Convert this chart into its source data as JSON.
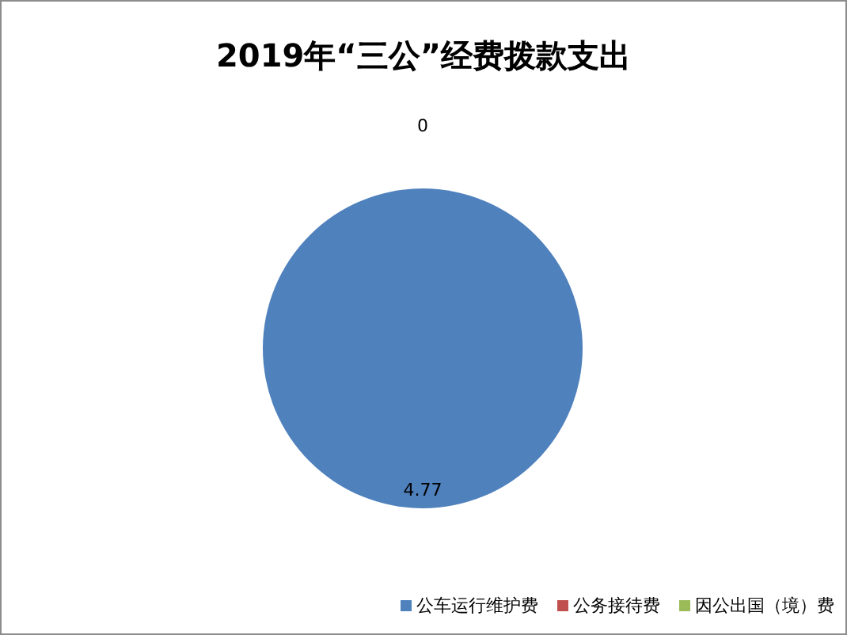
{
  "chart_data": {
    "type": "pie",
    "title": "2019年“三公”经费拨款支出",
    "categories": [
      "公车运行维护费",
      "公务接待费",
      "因公出国（境）费"
    ],
    "values": [
      4.77,
      0,
      0
    ],
    "colors": [
      "#4f81bd",
      "#c0504d",
      "#9bbb59"
    ],
    "value_labels": [
      "4.77",
      "0",
      null
    ],
    "legend": "bottom"
  }
}
